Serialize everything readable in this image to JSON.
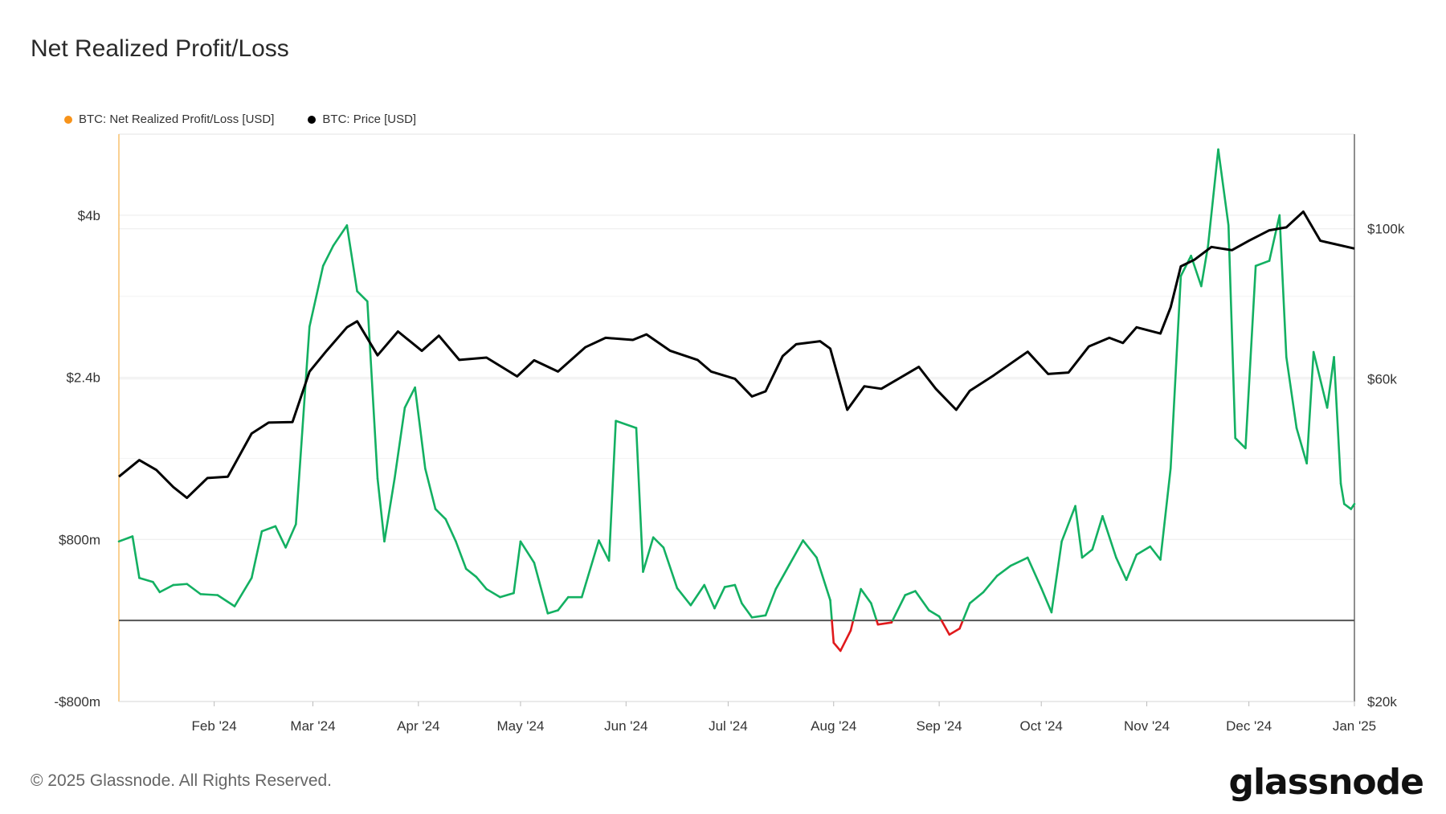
{
  "title": "Net Realized Profit/Loss",
  "footer": "© 2025 Glassnode. All Rights Reserved.",
  "logo_text": "glassnode",
  "colors": {
    "profit": "#13b062",
    "loss": "#e0191c",
    "price": "#000000",
    "orange": "#f7931a"
  },
  "chart_data": {
    "type": "line",
    "title": "Net Realized Profit/Loss",
    "legend": [
      {
        "name": "BTC: Net Realized Profit/Loss [USD]",
        "color": "#f7931a"
      },
      {
        "name": "BTC: Price [USD]",
        "color": "#000000"
      }
    ],
    "x_ticks": [
      "Feb '24",
      "Mar '24",
      "Apr '24",
      "May '24",
      "Jun '24",
      "Jul '24",
      "Aug '24",
      "Sep '24",
      "Oct '24",
      "Nov '24",
      "Dec '24",
      "Jan '25"
    ],
    "x_tick_dates": [
      "2024-02-01",
      "2024-03-01",
      "2024-04-01",
      "2024-05-01",
      "2024-06-01",
      "2024-07-01",
      "2024-08-01",
      "2024-09-01",
      "2024-10-01",
      "2024-11-01",
      "2024-12-01",
      "2025-01-01"
    ],
    "x_range": [
      "2024-01-04",
      "2025-01-01"
    ],
    "y_left": {
      "label": "",
      "ticks": [
        "$4b",
        "$2.4b",
        "$800m",
        "-$800m"
      ],
      "tick_values": [
        4000,
        2400,
        800,
        -800
      ],
      "range": [
        -800,
        4800
      ],
      "unit": "USD millions"
    },
    "y_right": {
      "label": "",
      "ticks": [
        "$100k",
        "$60k",
        "$20k"
      ],
      "tick_values": [
        100000,
        60000,
        20000
      ],
      "range": [
        20000,
        138000
      ],
      "scale": "log"
    },
    "series": [
      {
        "name": "BTC: Net Realized Profit/Loss [USD]",
        "axis": "left",
        "points": [
          [
            "2024-01-04",
            780
          ],
          [
            "2024-01-08",
            830
          ],
          [
            "2024-01-10",
            420
          ],
          [
            "2024-01-14",
            380
          ],
          [
            "2024-01-16",
            280
          ],
          [
            "2024-01-20",
            350
          ],
          [
            "2024-01-24",
            360
          ],
          [
            "2024-01-28",
            260
          ],
          [
            "2024-02-02",
            250
          ],
          [
            "2024-02-07",
            140
          ],
          [
            "2024-02-12",
            420
          ],
          [
            "2024-02-15",
            880
          ],
          [
            "2024-02-19",
            930
          ],
          [
            "2024-02-22",
            720
          ],
          [
            "2024-02-25",
            950
          ],
          [
            "2024-02-29",
            2900
          ],
          [
            "2024-03-04",
            3500
          ],
          [
            "2024-03-07",
            3700
          ],
          [
            "2024-03-11",
            3900
          ],
          [
            "2024-03-14",
            3250
          ],
          [
            "2024-03-17",
            3150
          ],
          [
            "2024-03-20",
            1400
          ],
          [
            "2024-03-22",
            780
          ],
          [
            "2024-03-25",
            1400
          ],
          [
            "2024-03-28",
            2100
          ],
          [
            "2024-03-31",
            2300
          ],
          [
            "2024-04-03",
            1500
          ],
          [
            "2024-04-06",
            1100
          ],
          [
            "2024-04-09",
            1000
          ],
          [
            "2024-04-12",
            780
          ],
          [
            "2024-04-15",
            510
          ],
          [
            "2024-04-18",
            430
          ],
          [
            "2024-04-21",
            310
          ],
          [
            "2024-04-25",
            230
          ],
          [
            "2024-04-29",
            270
          ],
          [
            "2024-05-01",
            780
          ],
          [
            "2024-05-05",
            570
          ],
          [
            "2024-05-09",
            70
          ],
          [
            "2024-05-12",
            100
          ],
          [
            "2024-05-15",
            230
          ],
          [
            "2024-05-19",
            230
          ],
          [
            "2024-05-24",
            790
          ],
          [
            "2024-05-27",
            590
          ],
          [
            "2024-05-29",
            1970
          ],
          [
            "2024-06-04",
            1900
          ],
          [
            "2024-06-06",
            480
          ],
          [
            "2024-06-09",
            820
          ],
          [
            "2024-06-12",
            720
          ],
          [
            "2024-06-16",
            320
          ],
          [
            "2024-06-20",
            150
          ],
          [
            "2024-06-24",
            350
          ],
          [
            "2024-06-27",
            120
          ],
          [
            "2024-06-30",
            330
          ],
          [
            "2024-07-03",
            350
          ],
          [
            "2024-07-05",
            170
          ],
          [
            "2024-07-08",
            30
          ],
          [
            "2024-07-12",
            50
          ],
          [
            "2024-07-15",
            310
          ],
          [
            "2024-07-19",
            550
          ],
          [
            "2024-07-23",
            790
          ],
          [
            "2024-07-27",
            620
          ],
          [
            "2024-07-31",
            200
          ],
          [
            "2024-08-01",
            -220
          ],
          [
            "2024-08-03",
            -300
          ],
          [
            "2024-08-06",
            -100
          ],
          [
            "2024-08-09",
            310
          ],
          [
            "2024-08-12",
            170
          ],
          [
            "2024-08-14",
            -40
          ],
          [
            "2024-08-18",
            -20
          ],
          [
            "2024-08-22",
            250
          ],
          [
            "2024-08-25",
            290
          ],
          [
            "2024-08-29",
            100
          ],
          [
            "2024-09-01",
            40
          ],
          [
            "2024-09-04",
            -140
          ],
          [
            "2024-09-07",
            -80
          ],
          [
            "2024-09-10",
            170
          ],
          [
            "2024-09-14",
            280
          ],
          [
            "2024-09-18",
            440
          ],
          [
            "2024-09-22",
            540
          ],
          [
            "2024-09-27",
            620
          ],
          [
            "2024-10-01",
            320
          ],
          [
            "2024-10-04",
            80
          ],
          [
            "2024-10-07",
            780
          ],
          [
            "2024-10-11",
            1130
          ],
          [
            "2024-10-13",
            620
          ],
          [
            "2024-10-16",
            700
          ],
          [
            "2024-10-19",
            1030
          ],
          [
            "2024-10-23",
            620
          ],
          [
            "2024-10-26",
            400
          ],
          [
            "2024-10-29",
            650
          ],
          [
            "2024-11-02",
            730
          ],
          [
            "2024-11-05",
            600
          ],
          [
            "2024-11-08",
            1500
          ],
          [
            "2024-11-11",
            3400
          ],
          [
            "2024-11-14",
            3600
          ],
          [
            "2024-11-17",
            3300
          ],
          [
            "2024-11-19",
            3700
          ],
          [
            "2024-11-22",
            4650
          ],
          [
            "2024-11-25",
            3900
          ],
          [
            "2024-11-27",
            1800
          ],
          [
            "2024-11-30",
            1700
          ],
          [
            "2024-12-03",
            3500
          ],
          [
            "2024-12-07",
            3550
          ],
          [
            "2024-12-10",
            4000
          ],
          [
            "2024-12-12",
            2600
          ],
          [
            "2024-12-15",
            1900
          ],
          [
            "2024-12-18",
            1550
          ],
          [
            "2024-12-20",
            2650
          ],
          [
            "2024-12-24",
            2100
          ],
          [
            "2024-12-26",
            2600
          ],
          [
            "2024-12-28",
            1350
          ],
          [
            "2024-12-29",
            1150
          ],
          [
            "2024-12-31",
            1100
          ],
          [
            "2025-01-01",
            1150
          ]
        ]
      },
      {
        "name": "BTC: Price [USD]",
        "axis": "right",
        "points": [
          [
            "2024-01-04",
            43000
          ],
          [
            "2024-01-10",
            45500
          ],
          [
            "2024-01-15",
            44000
          ],
          [
            "2024-01-20",
            41500
          ],
          [
            "2024-01-24",
            40000
          ],
          [
            "2024-01-30",
            42800
          ],
          [
            "2024-02-05",
            43000
          ],
          [
            "2024-02-12",
            49800
          ],
          [
            "2024-02-17",
            51700
          ],
          [
            "2024-02-24",
            51800
          ],
          [
            "2024-02-29",
            61500
          ],
          [
            "2024-03-05",
            66000
          ],
          [
            "2024-03-11",
            71500
          ],
          [
            "2024-03-14",
            73000
          ],
          [
            "2024-03-20",
            65000
          ],
          [
            "2024-03-26",
            70500
          ],
          [
            "2024-04-02",
            66000
          ],
          [
            "2024-04-07",
            69500
          ],
          [
            "2024-04-13",
            64000
          ],
          [
            "2024-04-21",
            64500
          ],
          [
            "2024-04-30",
            60500
          ],
          [
            "2024-05-05",
            63900
          ],
          [
            "2024-05-12",
            61500
          ],
          [
            "2024-05-20",
            66800
          ],
          [
            "2024-05-26",
            69000
          ],
          [
            "2024-06-03",
            68500
          ],
          [
            "2024-06-07",
            69800
          ],
          [
            "2024-06-14",
            66000
          ],
          [
            "2024-06-22",
            64000
          ],
          [
            "2024-06-26",
            61500
          ],
          [
            "2024-07-03",
            60000
          ],
          [
            "2024-07-08",
            56500
          ],
          [
            "2024-07-12",
            57500
          ],
          [
            "2024-07-17",
            64800
          ],
          [
            "2024-07-21",
            67500
          ],
          [
            "2024-07-28",
            68200
          ],
          [
            "2024-07-31",
            66500
          ],
          [
            "2024-08-05",
            54000
          ],
          [
            "2024-08-10",
            58500
          ],
          [
            "2024-08-15",
            58000
          ],
          [
            "2024-08-20",
            60000
          ],
          [
            "2024-08-26",
            62500
          ],
          [
            "2024-08-31",
            58000
          ],
          [
            "2024-09-06",
            54000
          ],
          [
            "2024-09-10",
            57600
          ],
          [
            "2024-09-17",
            60700
          ],
          [
            "2024-09-27",
            65800
          ],
          [
            "2024-10-03",
            61000
          ],
          [
            "2024-10-09",
            61300
          ],
          [
            "2024-10-15",
            67000
          ],
          [
            "2024-10-21",
            69000
          ],
          [
            "2024-10-25",
            67800
          ],
          [
            "2024-10-29",
            71500
          ],
          [
            "2024-11-05",
            70000
          ],
          [
            "2024-11-08",
            76500
          ],
          [
            "2024-11-11",
            88000
          ],
          [
            "2024-11-15",
            90000
          ],
          [
            "2024-11-20",
            94000
          ],
          [
            "2024-11-26",
            93000
          ],
          [
            "2024-12-01",
            96000
          ],
          [
            "2024-12-07",
            99500
          ],
          [
            "2024-12-12",
            100500
          ],
          [
            "2024-12-17",
            106000
          ],
          [
            "2024-12-22",
            96000
          ],
          [
            "2024-12-26",
            95000
          ],
          [
            "2025-01-01",
            93500
          ]
        ]
      }
    ],
    "grid": true,
    "legend_placement": "top-left"
  }
}
